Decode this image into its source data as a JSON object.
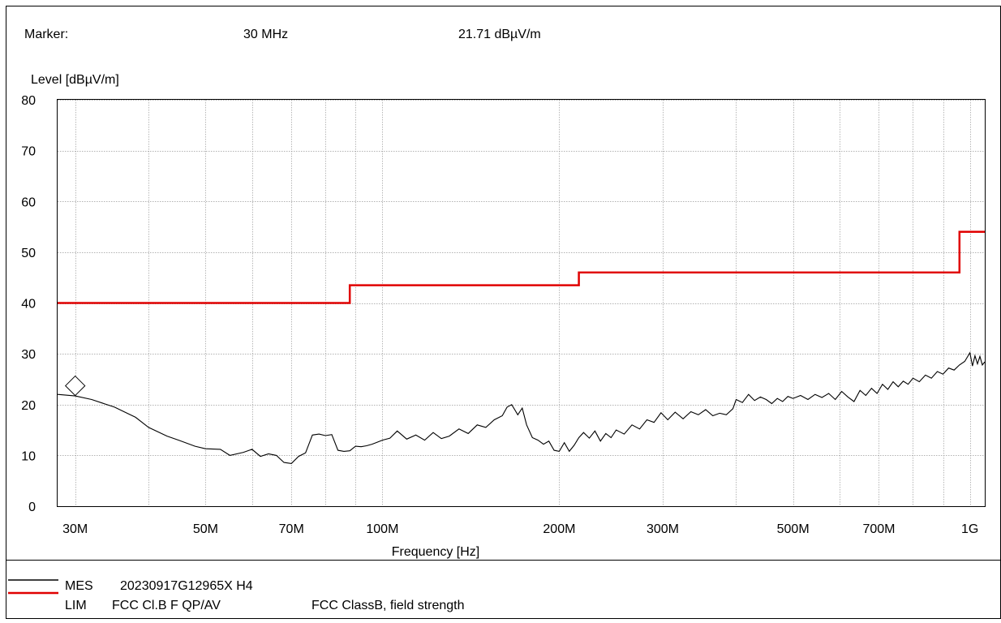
{
  "marker": {
    "label": "Marker:",
    "frequency": "30 MHz",
    "level": "21.71 dBµV/m"
  },
  "legend": [
    {
      "code": "MES",
      "name": "20230917G12965X H4",
      "description": "",
      "color": "#000000"
    },
    {
      "code": "LIM",
      "name": "FCC Cl.B F QP/AV",
      "description": "FCC ClassB, field strength",
      "color": "#e00000"
    }
  ],
  "chart_data": {
    "type": "line",
    "title": "",
    "xlabel": "Frequency [Hz]",
    "ylabel": "Level [dBµV/m]",
    "xscale": "log",
    "xlim": [
      28000000,
      1060000000
    ],
    "ylim": [
      0,
      80
    ],
    "grid": true,
    "yticks": [
      {
        "value": 0,
        "label": "0"
      },
      {
        "value": 10,
        "label": "10"
      },
      {
        "value": 20,
        "label": "20"
      },
      {
        "value": 30,
        "label": "30"
      },
      {
        "value": 40,
        "label": "40"
      },
      {
        "value": 50,
        "label": "50"
      },
      {
        "value": 60,
        "label": "60"
      },
      {
        "value": 70,
        "label": "70"
      },
      {
        "value": 80,
        "label": "80"
      }
    ],
    "xticks": [
      {
        "value": 30000000,
        "label": "30M"
      },
      {
        "value": 50000000,
        "label": "50M"
      },
      {
        "value": 70000000,
        "label": "70M"
      },
      {
        "value": 100000000,
        "label": "100M"
      },
      {
        "value": 200000000,
        "label": "200M"
      },
      {
        "value": 300000000,
        "label": "300M"
      },
      {
        "value": 500000000,
        "label": "500M"
      },
      {
        "value": 700000000,
        "label": "700M"
      },
      {
        "value": 1000000000,
        "label": "1G"
      }
    ],
    "minor_x_grid": [
      40000000,
      60000000,
      80000000,
      90000000,
      400000000,
      600000000,
      800000000,
      900000000
    ],
    "marker_point": {
      "x": 30000000,
      "y": 23.7
    },
    "series": [
      {
        "name": "MES",
        "color": "#000000",
        "x": [
          28000000,
          30000000,
          32000000,
          35000000,
          38000000,
          40000000,
          43000000,
          45000000,
          48000000,
          50000000,
          53000000,
          55000000,
          58000000,
          60000000,
          62000000,
          64000000,
          66000000,
          68000000,
          70000000,
          72000000,
          74000000,
          76000000,
          78000000,
          80000000,
          82000000,
          84000000,
          86000000,
          88000000,
          90000000,
          92000000,
          94000000,
          96000000,
          98000000,
          100000000,
          103000000,
          106000000,
          110000000,
          114000000,
          118000000,
          122000000,
          126000000,
          130000000,
          135000000,
          140000000,
          145000000,
          150000000,
          155000000,
          160000000,
          163000000,
          166000000,
          170000000,
          173000000,
          176000000,
          180000000,
          184000000,
          188000000,
          192000000,
          196000000,
          200000000,
          204000000,
          208000000,
          212000000,
          216000000,
          220000000,
          225000000,
          230000000,
          235000000,
          240000000,
          245000000,
          250000000,
          258000000,
          266000000,
          274000000,
          282000000,
          290000000,
          298000000,
          306000000,
          315000000,
          325000000,
          335000000,
          345000000,
          355000000,
          365000000,
          375000000,
          385000000,
          395000000,
          400000000,
          410000000,
          420000000,
          430000000,
          440000000,
          450000000,
          460000000,
          470000000,
          480000000,
          490000000,
          500000000,
          515000000,
          530000000,
          545000000,
          560000000,
          575000000,
          590000000,
          605000000,
          620000000,
          635000000,
          650000000,
          665000000,
          680000000,
          695000000,
          710000000,
          725000000,
          740000000,
          755000000,
          770000000,
          785000000,
          800000000,
          820000000,
          840000000,
          860000000,
          880000000,
          900000000,
          920000000,
          940000000,
          960000000,
          980000000,
          1000000000,
          1010000000,
          1020000000,
          1030000000,
          1040000000,
          1050000000,
          1060000000
        ],
        "y": [
          22.0,
          21.7,
          21.0,
          19.5,
          17.5,
          15.5,
          13.8,
          13.0,
          11.8,
          11.3,
          11.2,
          10.0,
          10.6,
          11.2,
          9.8,
          10.3,
          10.0,
          8.6,
          8.4,
          9.8,
          10.5,
          14.0,
          14.2,
          13.9,
          14.1,
          11.0,
          10.8,
          10.9,
          11.8,
          11.7,
          11.9,
          12.2,
          12.6,
          13.0,
          13.4,
          14.8,
          13.2,
          14.0,
          13.0,
          14.5,
          13.3,
          13.8,
          15.2,
          14.3,
          16.0,
          15.5,
          17.0,
          17.8,
          19.5,
          20.0,
          18.0,
          19.3,
          16.0,
          13.5,
          13.0,
          12.2,
          12.8,
          11.0,
          10.8,
          12.5,
          10.8,
          12.0,
          13.5,
          14.5,
          13.4,
          14.8,
          12.8,
          14.3,
          13.5,
          15.0,
          14.2,
          16.0,
          15.2,
          17.0,
          16.5,
          18.4,
          17.0,
          18.5,
          17.2,
          18.6,
          18.0,
          19.0,
          17.8,
          18.3,
          18.0,
          19.2,
          21.0,
          20.4,
          22.0,
          20.8,
          21.5,
          21.0,
          20.2,
          21.2,
          20.6,
          21.6,
          21.2,
          21.8,
          21.0,
          22.0,
          21.4,
          22.2,
          21.0,
          22.6,
          21.5,
          20.6,
          22.8,
          21.8,
          23.2,
          22.2,
          24.0,
          23.0,
          24.5,
          23.5,
          24.6,
          24.0,
          25.2,
          24.5,
          25.8,
          25.2,
          26.5,
          26.0,
          27.2,
          26.8,
          27.8,
          28.5,
          30.2,
          27.6,
          29.6,
          28.0,
          29.5,
          27.8,
          28.4
        ]
      },
      {
        "name": "LIM",
        "color": "#e00000",
        "step": true,
        "x": [
          28000000,
          88000000,
          88000000,
          216000000,
          216000000,
          960000000,
          960000000,
          1060000000
        ],
        "y": [
          40.0,
          40.0,
          43.5,
          43.5,
          46.0,
          46.0,
          54.0,
          54.0
        ]
      }
    ]
  }
}
